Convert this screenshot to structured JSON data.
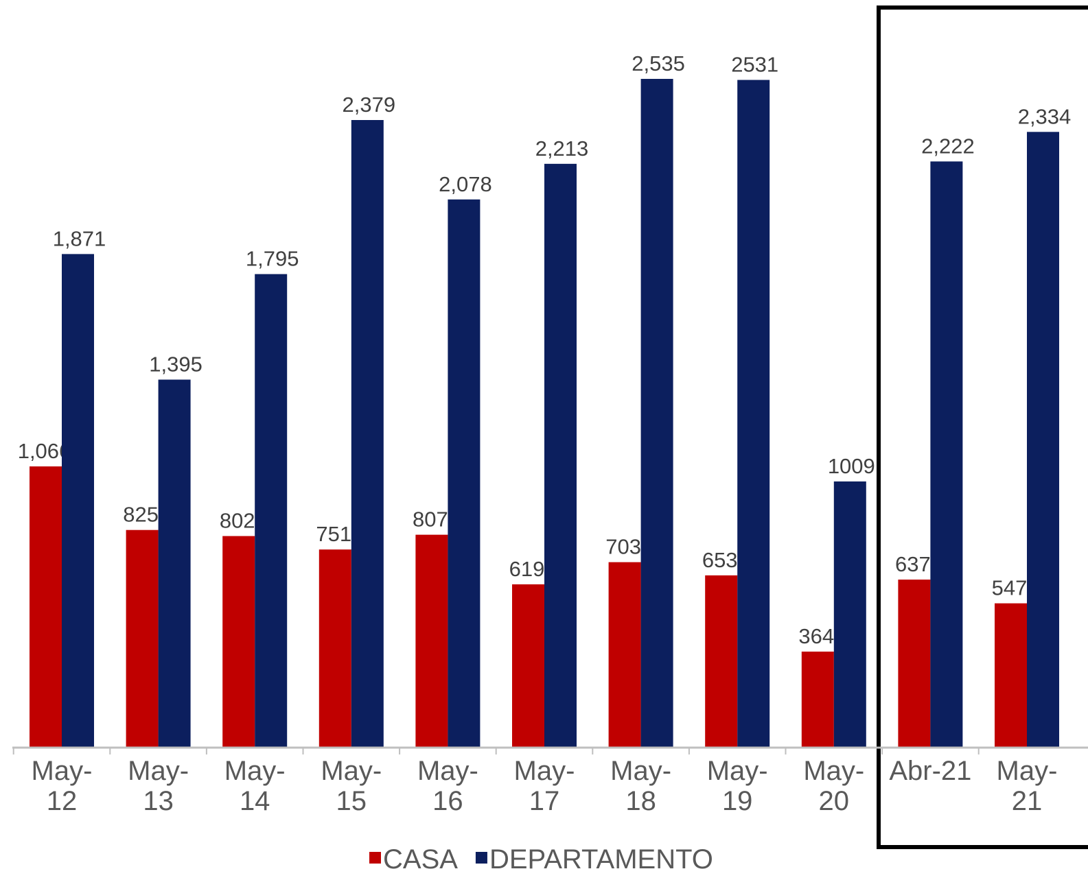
{
  "chart_data": {
    "type": "bar",
    "categories": [
      "May-12",
      "May-13",
      "May-14",
      "May-15",
      "May-16",
      "May-17",
      "May-18",
      "May-19",
      "May-20",
      "Abr-21",
      "May-21"
    ],
    "series": [
      {
        "name": "CASA",
        "color": "#c00000",
        "values": [
          1066,
          825,
          802,
          751,
          807,
          619,
          703,
          653,
          364,
          637,
          547
        ],
        "value_labels": [
          "1,066",
          "825",
          "802",
          "751",
          "807",
          "619",
          "703",
          "653",
          "364",
          "637",
          "547"
        ]
      },
      {
        "name": "DEPARTAMENTO",
        "color": "#0c1f5e",
        "values": [
          1871,
          1395,
          1795,
          2379,
          2078,
          2213,
          2535,
          2531,
          1009,
          2222,
          2334
        ],
        "value_labels": [
          "1,871",
          "1,395",
          "1,795",
          "2,379",
          "2,078",
          "2,213",
          "2,535",
          "2531",
          "1009",
          "2,222",
          "2,334"
        ]
      }
    ],
    "legend": "bottom"
  }
}
